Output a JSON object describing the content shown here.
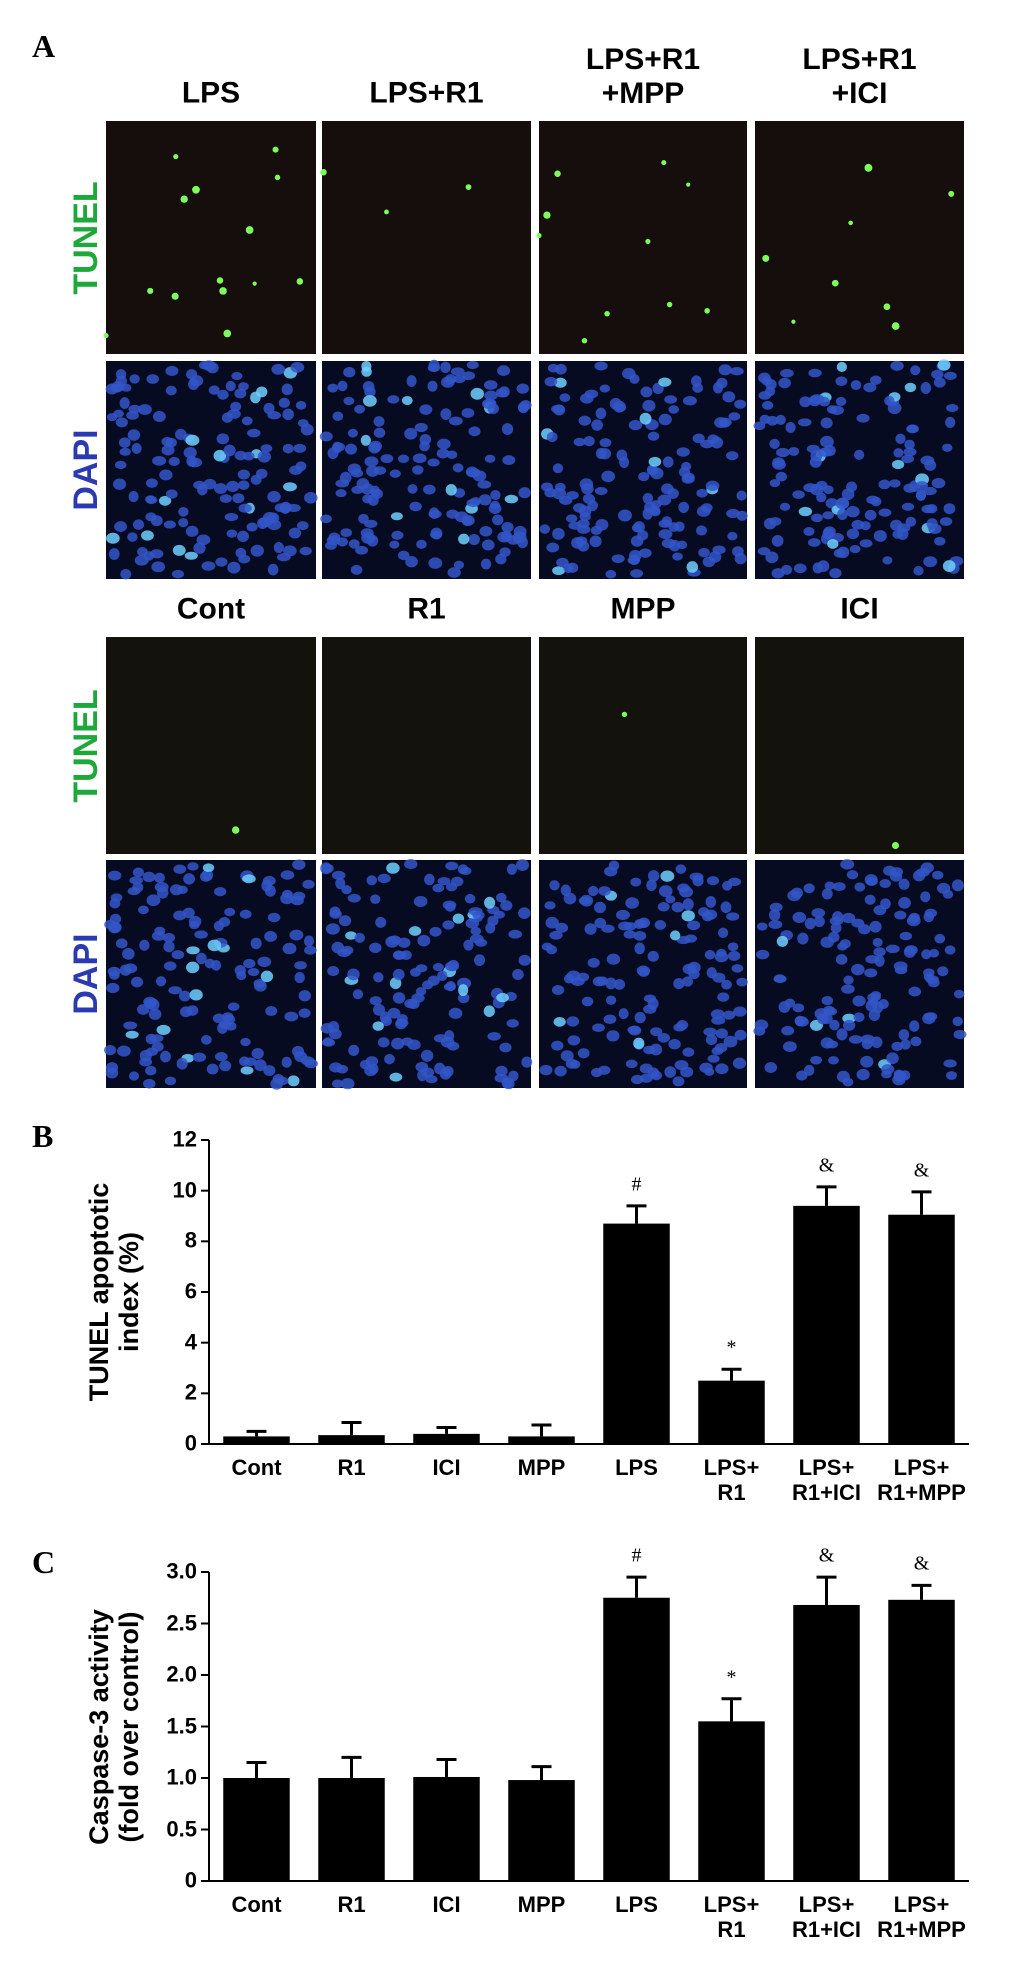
{
  "panels": {
    "labels": [
      "A",
      "B",
      "C"
    ],
    "a": {
      "top_columns": [
        "LPS",
        "LPS+R1",
        "LPS+R1\n+MPP",
        "LPS+R1\n+ICI"
      ],
      "bottom_columns": [
        "Cont",
        "R1",
        "MPP",
        "ICI"
      ],
      "rows": [
        "TUNEL",
        "DAPI"
      ]
    }
  },
  "chart_data": [
    {
      "type": "bar",
      "ylabel": "TUNEL apoptotic\nindex (%)",
      "categories": [
        "Cont",
        "R1",
        "ICI",
        "MPP",
        "LPS",
        "LPS+\nR1",
        "LPS+\nR1+ICI",
        "LPS+\nR1+MPP"
      ],
      "values": [
        0.3,
        0.35,
        0.4,
        0.3,
        8.7,
        2.5,
        9.4,
        9.05
      ],
      "errors": [
        0.2,
        0.5,
        0.25,
        0.45,
        0.7,
        0.45,
        0.75,
        0.9
      ],
      "color": "#000000",
      "ylim": [
        0,
        12
      ],
      "yticks": [
        0,
        2,
        4,
        6,
        8,
        10,
        12
      ],
      "annotations": [
        {
          "index": 4,
          "text": "#"
        },
        {
          "index": 5,
          "text": "*"
        },
        {
          "index": 6,
          "text": "&"
        },
        {
          "index": 7,
          "text": "&"
        }
      ]
    },
    {
      "type": "bar",
      "ylabel": "Caspase-3 activity\n(fold over control)",
      "categories": [
        "Cont",
        "R1",
        "ICI",
        "MPP",
        "LPS",
        "LPS+\nR1",
        "LPS+\nR1+ICI",
        "LPS+\nR1+MPP"
      ],
      "values": [
        1.0,
        1.0,
        1.01,
        0.98,
        2.75,
        1.55,
        2.68,
        2.73
      ],
      "errors": [
        0.15,
        0.2,
        0.17,
        0.13,
        0.2,
        0.22,
        0.27,
        0.14
      ],
      "color": "#000000",
      "ylim": [
        0,
        3
      ],
      "yticks": [
        0,
        0.5,
        {
          "value": 1,
          "label": "1.0"
        },
        1.5,
        {
          "value": 2,
          "label": "2.0"
        },
        2.5,
        {
          "value": 3,
          "label": "3.0"
        }
      ],
      "annotations": [
        {
          "index": 4,
          "text": "#"
        },
        {
          "index": 5,
          "text": "*"
        },
        {
          "index": 6,
          "text": "&"
        },
        {
          "index": 7,
          "text": "&"
        }
      ]
    }
  ]
}
